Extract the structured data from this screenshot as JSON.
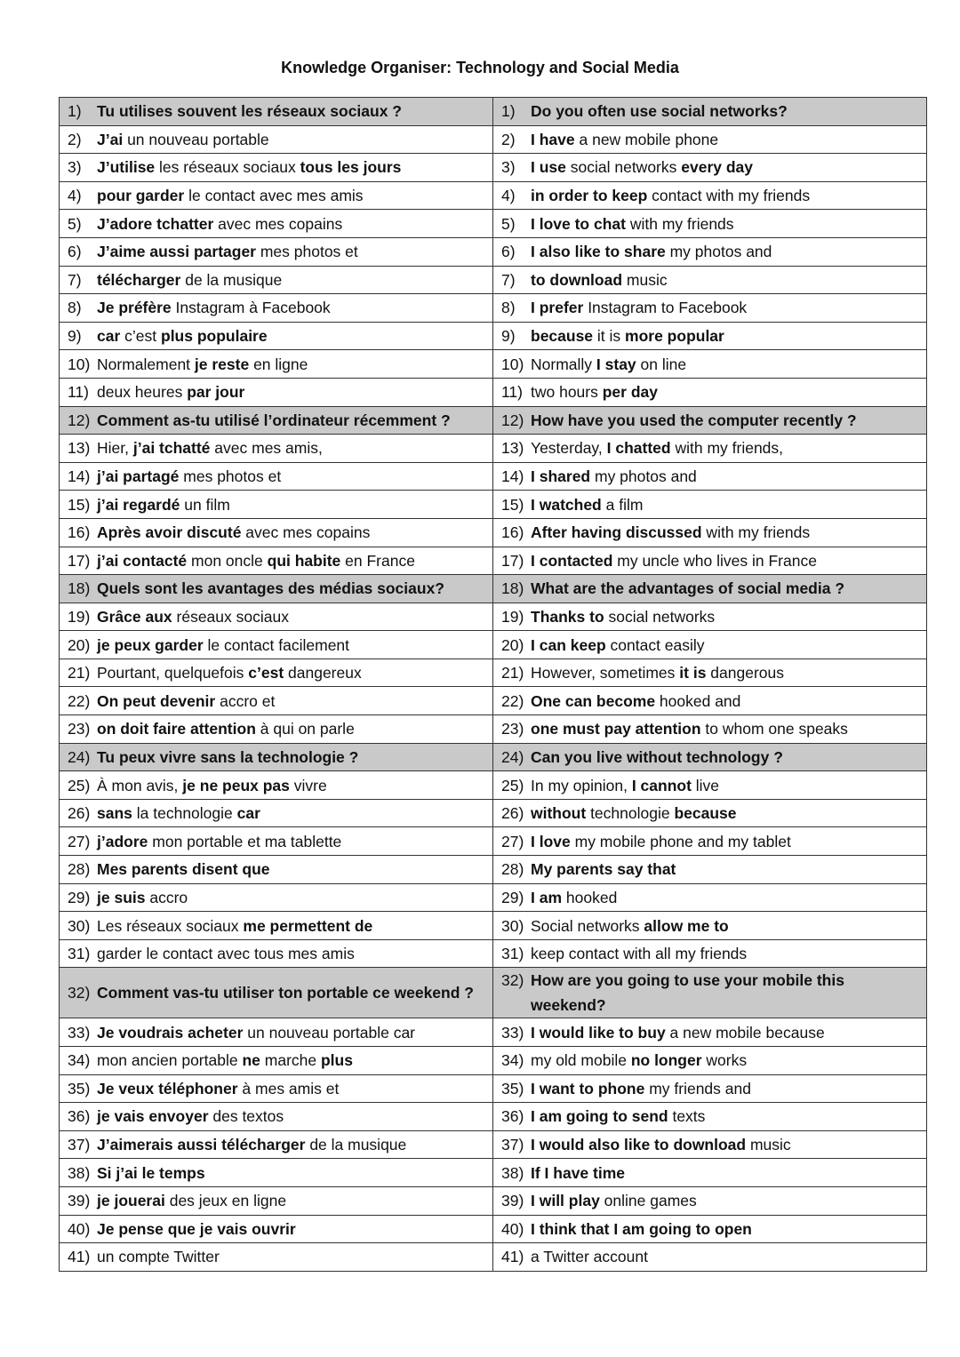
{
  "title": "Knowledge Organiser: Technology and Social Media",
  "colors": {
    "header_row": "#c9c9c9",
    "border": "#333333"
  },
  "rows": [
    {
      "n": "1)",
      "h": true,
      "fr": [
        {
          "t": "Tu utilises souvent les réseaux sociaux ?",
          "b": 1
        }
      ],
      "en": [
        {
          "t": "Do you often use social networks?",
          "b": 1
        }
      ]
    },
    {
      "n": "2)",
      "fr": [
        {
          "t": "J’ai",
          "b": 1
        },
        {
          "t": " un nouveau portable"
        }
      ],
      "en": [
        {
          "t": "I have",
          "b": 1
        },
        {
          "t": " a new mobile phone"
        }
      ]
    },
    {
      "n": "3)",
      "fr": [
        {
          "t": "J’utilise",
          "b": 1
        },
        {
          "t": " les réseaux sociaux "
        },
        {
          "t": "tous les jours",
          "b": 1
        }
      ],
      "en": [
        {
          "t": "I use",
          "b": 1
        },
        {
          "t": " social networks "
        },
        {
          "t": "every day",
          "b": 1
        }
      ]
    },
    {
      "n": "4)",
      "fr": [
        {
          "t": "pour garder",
          "b": 1
        },
        {
          "t": " le contact avec mes amis"
        }
      ],
      "en": [
        {
          "t": "in order to keep",
          "b": 1
        },
        {
          "t": " contact with my friends"
        }
      ]
    },
    {
      "n": "5)",
      "fr": [
        {
          "t": "J’adore tchatter",
          "b": 1
        },
        {
          "t": " avec mes copains"
        }
      ],
      "en": [
        {
          "t": "I love to chat",
          "b": 1
        },
        {
          "t": " with my friends"
        }
      ]
    },
    {
      "n": "6)",
      "fr": [
        {
          "t": "J’aime aussi partager",
          "b": 1
        },
        {
          "t": " mes photos et"
        }
      ],
      "en": [
        {
          "t": "I also like to share",
          "b": 1
        },
        {
          "t": " my photos and"
        }
      ]
    },
    {
      "n": "7)",
      "fr": [
        {
          "t": "télécharger",
          "b": 1
        },
        {
          "t": " de la musique"
        }
      ],
      "en": [
        {
          "t": "to download",
          "b": 1
        },
        {
          "t": " music"
        }
      ]
    },
    {
      "n": "8)",
      "fr": [
        {
          "t": "Je préfère",
          "b": 1
        },
        {
          "t": " Instagram à Facebook"
        }
      ],
      "en": [
        {
          "t": "I prefer",
          "b": 1
        },
        {
          "t": " Instagram to Facebook"
        }
      ]
    },
    {
      "n": "9)",
      "fr": [
        {
          "t": "car",
          "b": 1
        },
        {
          "t": " c’est "
        },
        {
          "t": "plus populaire",
          "b": 1
        }
      ],
      "en": [
        {
          "t": "because",
          "b": 1
        },
        {
          "t": " it is "
        },
        {
          "t": "more popular",
          "b": 1
        }
      ]
    },
    {
      "n": "10)",
      "fr": [
        {
          "t": "Normalement "
        },
        {
          "t": "je reste",
          "b": 1
        },
        {
          "t": " en ligne"
        }
      ],
      "en": [
        {
          "t": "Normally "
        },
        {
          "t": "I stay",
          "b": 1
        },
        {
          "t": " on line"
        }
      ]
    },
    {
      "n": "11)",
      "fr": [
        {
          "t": "deux heures "
        },
        {
          "t": "par jour",
          "b": 1
        }
      ],
      "en": [
        {
          "t": "two hours "
        },
        {
          "t": "per day",
          "b": 1
        }
      ]
    },
    {
      "n": "12)",
      "h": true,
      "fr": [
        {
          "t": "Comment as-tu utilisé l’ordinateur récemment ?",
          "b": 1
        }
      ],
      "en": [
        {
          "t": "How have you used the computer recently ?",
          "b": 1
        }
      ]
    },
    {
      "n": "13)",
      "fr": [
        {
          "t": "Hier, "
        },
        {
          "t": "j’ai tchatté",
          "b": 1
        },
        {
          "t": " avec mes amis,"
        }
      ],
      "en": [
        {
          "t": "Yesterday, "
        },
        {
          "t": "I chatted",
          "b": 1
        },
        {
          "t": " with my friends,"
        }
      ]
    },
    {
      "n": "14)",
      "fr": [
        {
          "t": "j’ai partagé",
          "b": 1
        },
        {
          "t": " mes photos et"
        }
      ],
      "en": [
        {
          "t": "I shared",
          "b": 1
        },
        {
          "t": " my photos and"
        }
      ]
    },
    {
      "n": "15)",
      "fr": [
        {
          "t": "j’ai regardé",
          "b": 1
        },
        {
          "t": " un film"
        }
      ],
      "en": [
        {
          "t": "I watched",
          "b": 1
        },
        {
          "t": " a film"
        }
      ]
    },
    {
      "n": "16)",
      "fr": [
        {
          "t": "Après avoir discuté",
          "b": 1
        },
        {
          "t": " avec mes copains"
        }
      ],
      "en": [
        {
          "t": "After having discussed",
          "b": 1
        },
        {
          "t": " with my friends"
        }
      ]
    },
    {
      "n": "17)",
      "fr": [
        {
          "t": "j’ai contacté",
          "b": 1
        },
        {
          "t": " mon oncle "
        },
        {
          "t": "qui habite",
          "b": 1
        },
        {
          "t": " en France"
        }
      ],
      "en": [
        {
          "t": "I contacted",
          "b": 1
        },
        {
          "t": " my uncle who lives in France"
        }
      ]
    },
    {
      "n": "18)",
      "h": true,
      "fr": [
        {
          "t": "Quels sont les avantages des médias sociaux?",
          "b": 1
        }
      ],
      "en": [
        {
          "t": "What are the advantages of social media ?",
          "b": 1
        }
      ]
    },
    {
      "n": "19)",
      "fr": [
        {
          "t": "Grâce aux",
          "b": 1
        },
        {
          "t": " réseaux sociaux"
        }
      ],
      "en": [
        {
          "t": "Thanks to",
          "b": 1
        },
        {
          "t": " social networks"
        }
      ]
    },
    {
      "n": "20)",
      "fr": [
        {
          "t": "je peux garder",
          "b": 1
        },
        {
          "t": " le contact facilement"
        }
      ],
      "en": [
        {
          "t": "I can keep",
          "b": 1
        },
        {
          "t": " contact easily"
        }
      ]
    },
    {
      "n": "21)",
      "fr": [
        {
          "t": "Pourtant, quelquefois "
        },
        {
          "t": "c’est",
          "b": 1
        },
        {
          "t": " dangereux"
        }
      ],
      "en": [
        {
          "t": "However, sometimes "
        },
        {
          "t": "it is",
          "b": 1
        },
        {
          "t": " dangerous"
        }
      ]
    },
    {
      "n": "22)",
      "fr": [
        {
          "t": "On peut devenir",
          "b": 1
        },
        {
          "t": " accro et"
        }
      ],
      "en": [
        {
          "t": "One can become",
          "b": 1
        },
        {
          "t": " hooked and"
        }
      ]
    },
    {
      "n": "23)",
      "fr": [
        {
          "t": "on doit faire attention",
          "b": 1
        },
        {
          "t": " à qui on parle"
        }
      ],
      "en": [
        {
          "t": "one must pay attention",
          "b": 1
        },
        {
          "t": " to whom one speaks"
        }
      ]
    },
    {
      "n": "24)",
      "h": true,
      "fr": [
        {
          "t": "Tu peux vivre sans la technologie ?",
          "b": 1
        }
      ],
      "en": [
        {
          "t": "Can you live without technology ?",
          "b": 1
        }
      ]
    },
    {
      "n": "25)",
      "fr": [
        {
          "t": "À mon avis, "
        },
        {
          "t": "je ne peux pas",
          "b": 1
        },
        {
          "t": " vivre"
        }
      ],
      "en": [
        {
          "t": "In my opinion, "
        },
        {
          "t": "I cannot",
          "b": 1
        },
        {
          "t": " live"
        }
      ]
    },
    {
      "n": "26)",
      "fr": [
        {
          "t": "sans",
          "b": 1
        },
        {
          "t": " la technologie "
        },
        {
          "t": "car",
          "b": 1
        }
      ],
      "en": [
        {
          "t": "without",
          "b": 1
        },
        {
          "t": " technologie "
        },
        {
          "t": "because",
          "b": 1
        }
      ]
    },
    {
      "n": "27)",
      "fr": [
        {
          "t": "j’adore",
          "b": 1
        },
        {
          "t": " mon portable et ma tablette"
        }
      ],
      "en": [
        {
          "t": "I love",
          "b": 1
        },
        {
          "t": " my mobile phone and my tablet"
        }
      ]
    },
    {
      "n": "28)",
      "fr": [
        {
          "t": "Mes parents disent que",
          "b": 1
        }
      ],
      "en": [
        {
          "t": "My parents say that",
          "b": 1
        }
      ]
    },
    {
      "n": "29)",
      "fr": [
        {
          "t": "je suis",
          "b": 1
        },
        {
          "t": " accro"
        }
      ],
      "en": [
        {
          "t": "I am",
          "b": 1
        },
        {
          "t": " hooked"
        }
      ]
    },
    {
      "n": "30)",
      "fr": [
        {
          "t": "Les réseaux sociaux "
        },
        {
          "t": "me permettent de",
          "b": 1
        }
      ],
      "en": [
        {
          "t": "Social networks "
        },
        {
          "t": "allow me to",
          "b": 1
        }
      ]
    },
    {
      "n": "31)",
      "fr": [
        {
          "t": "garder le contact avec tous mes amis"
        }
      ],
      "en": [
        {
          "t": "keep contact with all my friends"
        }
      ]
    },
    {
      "n": "32)",
      "h": true,
      "fr": [
        {
          "t": "Comment vas-tu utiliser ton portable ce weekend ?",
          "b": 1
        }
      ],
      "en": [
        {
          "t": "How are you going to use your mobile this weekend?",
          "b": 1
        }
      ]
    },
    {
      "n": "33)",
      "fr": [
        {
          "t": "Je voudrais acheter",
          "b": 1
        },
        {
          "t": " un nouveau portable car"
        }
      ],
      "en": [
        {
          "t": "I would like to buy",
          "b": 1
        },
        {
          "t": " a new mobile because"
        }
      ]
    },
    {
      "n": "34)",
      "fr": [
        {
          "t": "mon ancien portable "
        },
        {
          "t": "ne",
          "b": 1
        },
        {
          "t": " marche "
        },
        {
          "t": "plus",
          "b": 1
        }
      ],
      "en": [
        {
          "t": "my old mobile "
        },
        {
          "t": "no longer",
          "b": 1
        },
        {
          "t": " works"
        }
      ]
    },
    {
      "n": "35)",
      "fr": [
        {
          "t": "Je veux téléphoner",
          "b": 1
        },
        {
          "t": " à mes amis et"
        }
      ],
      "en": [
        {
          "t": "I want to phone",
          "b": 1
        },
        {
          "t": " my friends and"
        }
      ]
    },
    {
      "n": "36)",
      "fr": [
        {
          "t": "je vais envoyer",
          "b": 1
        },
        {
          "t": " des textos"
        }
      ],
      "en": [
        {
          "t": "I am going to send",
          "b": 1
        },
        {
          "t": " texts"
        }
      ]
    },
    {
      "n": "37)",
      "fr": [
        {
          "t": "J’aimerais aussi télécharger",
          "b": 1
        },
        {
          "t": " de la musique"
        }
      ],
      "en": [
        {
          "t": "I would also like to download",
          "b": 1
        },
        {
          "t": " music"
        }
      ]
    },
    {
      "n": "38)",
      "fr": [
        {
          "t": "Si j’ai le temps",
          "b": 1
        }
      ],
      "en": [
        {
          "t": "If I have time",
          "b": 1
        }
      ]
    },
    {
      "n": "39)",
      "fr": [
        {
          "t": "je jouerai",
          "b": 1
        },
        {
          "t": " des jeux en ligne"
        }
      ],
      "en": [
        {
          "t": "I will play",
          "b": 1
        },
        {
          "t": " online games"
        }
      ]
    },
    {
      "n": "40)",
      "fr": [
        {
          "t": "Je pense que je vais ouvrir",
          "b": 1
        }
      ],
      "en": [
        {
          "t": "I think  that I am going to open",
          "b": 1
        }
      ]
    },
    {
      "n": "41)",
      "fr": [
        {
          "t": "un compte Twitter"
        }
      ],
      "en": [
        {
          "t": "a Twitter account"
        }
      ]
    }
  ]
}
